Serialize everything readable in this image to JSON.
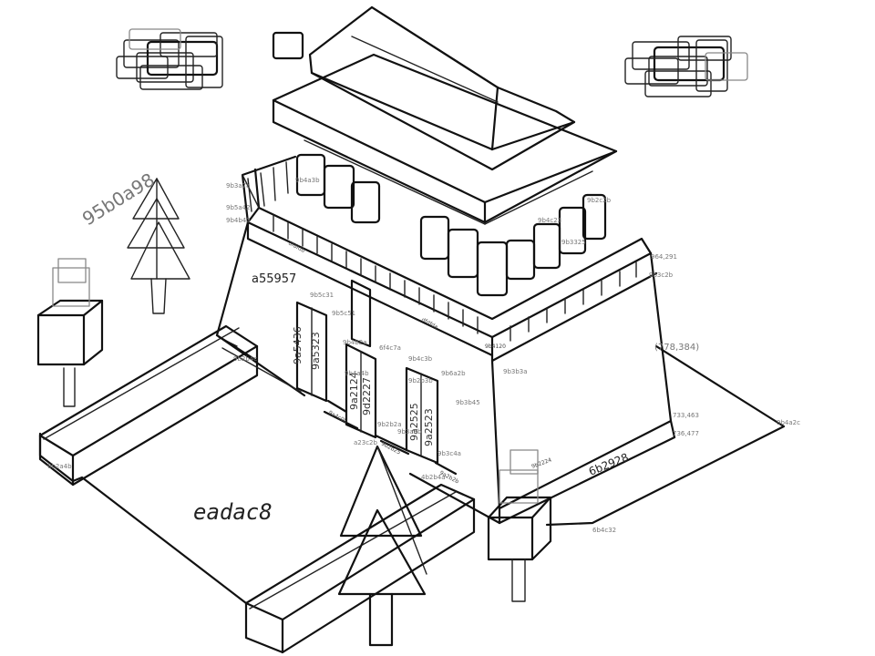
{
  "sketch": {
    "labels": {
      "courtyard": "eadac8",
      "left_tree_note": "95b0a98",
      "front_wall": "a55957",
      "right_wall_code": "6b2928",
      "corner_coord": "(778,384)",
      "pillar_left_1": "9a5436",
      "pillar_left_2": "9a5323",
      "pillar_mid_1": "9a2124",
      "pillar_mid_2": "9d2227",
      "pillar_right_1": "9a2525",
      "pillar_right_2": "9a2523",
      "parapet_left": "dfdfdb",
      "parapet_front": "dfdfda",
      "gate_base_1": "9a4c0b",
      "gate_base_2": "9b2b25",
      "gate_base_3": "9a2b2b",
      "right_corner_1": "9b4120",
      "right_corner_2": "9b2224",
      "right_side_1": "964,291",
      "right_side_2": "733,463",
      "right_side_3": "736,477",
      "small_tags": [
        "9b3a7a",
        "9b5a42",
        "9b4b43",
        "9b5c51",
        "9b5c31",
        "9b4b2a",
        "6f4c7a",
        "9b4c3b",
        "9b6a2b",
        "9b3b45",
        "9b2b2a",
        "9b3a3b",
        "9b3c4a",
        "4b2b4a",
        "a23c2b",
        "9b3325",
        "9b2c2b",
        "9b4c23",
        "6b4c32",
        "9b2a4b",
        "9b4a2c",
        "9b3c2b",
        "9b3b3a",
        "9b2b4c",
        "9b4a3b",
        "9b2b3b",
        "9b4a4b"
      ]
    }
  }
}
